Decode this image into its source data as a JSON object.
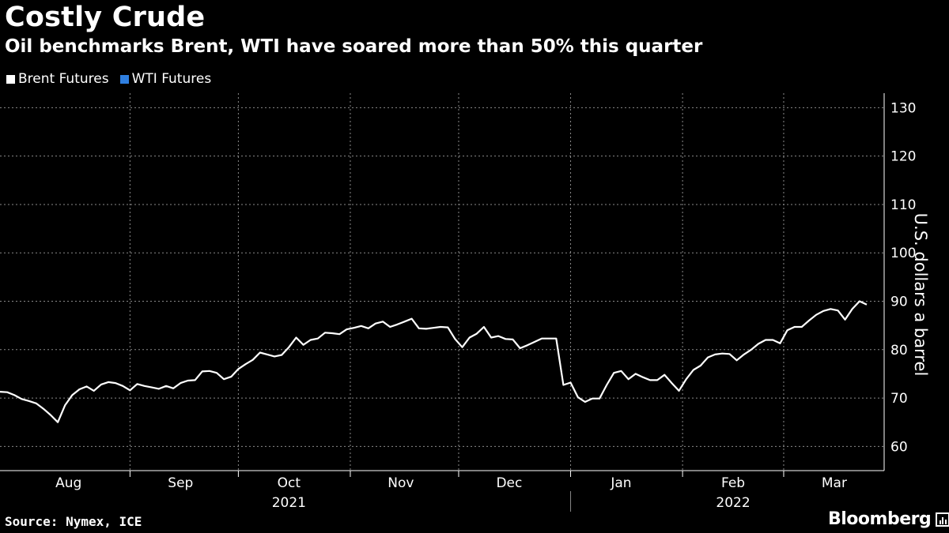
{
  "header": {
    "title": "Costly Crude",
    "subtitle": "Oil benchmarks Brent, WTI have soared more than 50% this quarter"
  },
  "legend": {
    "brent_label": "Brent Futures",
    "wti_label": "WTI Futures"
  },
  "footer": {
    "source": "Source: Nymex, ICE",
    "brand": "Bloomberg"
  },
  "colors": {
    "background": "#000000",
    "brent": "#ffffff",
    "wti": "#2f7fe0",
    "grid": "#8a8a8a"
  },
  "chart_data": {
    "type": "line",
    "title": "Costly Crude",
    "subtitle": "Oil benchmarks Brent, WTI have soared more than 50% this quarter",
    "xlabel": "",
    "ylabel": "U.S. dollars a barrel",
    "ylim": [
      55,
      133
    ],
    "yticks": [
      60,
      70,
      80,
      90,
      100,
      110,
      120,
      130
    ],
    "x_range": [
      "2021-07-27",
      "2022-03-24"
    ],
    "month_ticks": [
      {
        "label": "Aug",
        "date": "2021-08-15"
      },
      {
        "label": "Sep",
        "date": "2021-09-15"
      },
      {
        "label": "Oct",
        "date": "2021-10-15"
      },
      {
        "label": "Nov",
        "date": "2021-11-15"
      },
      {
        "label": "Dec",
        "date": "2021-12-15"
      },
      {
        "label": "Jan",
        "date": "2022-01-15"
      },
      {
        "label": "Feb",
        "date": "2022-02-15"
      },
      {
        "label": "Mar",
        "date": "2022-03-15"
      }
    ],
    "month_boundaries": [
      "2021-09-01",
      "2021-10-01",
      "2021-11-01",
      "2021-12-01",
      "2022-01-01",
      "2022-02-01",
      "2022-03-01"
    ],
    "year_labels": [
      {
        "label": "2021",
        "date": "2021-10-15"
      },
      {
        "label": "2022",
        "date": "2022-02-15"
      }
    ],
    "year_boundary": "2022-01-01",
    "grid": true,
    "legend_position": "top-left",
    "series": [
      {
        "name": "Brent Futures",
        "color": "#ffffff",
        "points": [
          [
            "2021-07-27",
            71.3
          ],
          [
            "2021-07-29",
            71.2
          ],
          [
            "2021-07-31",
            70.6
          ],
          [
            "2021-08-02",
            69.8
          ],
          [
            "2021-08-04",
            69.4
          ],
          [
            "2021-08-06",
            68.9
          ],
          [
            "2021-08-08",
            67.8
          ],
          [
            "2021-08-10",
            66.5
          ],
          [
            "2021-08-12",
            65.0
          ],
          [
            "2021-08-14",
            68.5
          ],
          [
            "2021-08-16",
            70.6
          ],
          [
            "2021-08-18",
            71.8
          ],
          [
            "2021-08-20",
            72.4
          ],
          [
            "2021-08-22",
            71.5
          ],
          [
            "2021-08-24",
            72.8
          ],
          [
            "2021-08-26",
            73.3
          ],
          [
            "2021-08-28",
            73.1
          ],
          [
            "2021-08-30",
            72.5
          ],
          [
            "2021-09-01",
            71.6
          ],
          [
            "2021-09-03",
            72.9
          ],
          [
            "2021-09-05",
            72.5
          ],
          [
            "2021-09-07",
            72.2
          ],
          [
            "2021-09-09",
            71.9
          ],
          [
            "2021-09-11",
            72.5
          ],
          [
            "2021-09-13",
            72.0
          ],
          [
            "2021-09-15",
            73.1
          ],
          [
            "2021-09-17",
            73.6
          ],
          [
            "2021-09-19",
            73.7
          ],
          [
            "2021-09-21",
            75.5
          ],
          [
            "2021-09-23",
            75.6
          ],
          [
            "2021-09-25",
            75.2
          ],
          [
            "2021-09-27",
            73.9
          ],
          [
            "2021-09-29",
            74.4
          ],
          [
            "2021-10-01",
            76.0
          ],
          [
            "2021-10-03",
            77.0
          ],
          [
            "2021-10-05",
            77.9
          ],
          [
            "2021-10-07",
            79.4
          ],
          [
            "2021-10-09",
            79.0
          ],
          [
            "2021-10-11",
            78.6
          ],
          [
            "2021-10-13",
            78.9
          ],
          [
            "2021-10-15",
            80.5
          ],
          [
            "2021-10-17",
            82.5
          ],
          [
            "2021-10-19",
            81.0
          ],
          [
            "2021-10-21",
            82.0
          ],
          [
            "2021-10-23",
            82.3
          ],
          [
            "2021-10-25",
            83.5
          ],
          [
            "2021-10-27",
            83.4
          ],
          [
            "2021-10-29",
            83.2
          ],
          [
            "2021-10-31",
            84.2
          ],
          [
            "2021-11-02",
            84.5
          ],
          [
            "2021-11-04",
            84.9
          ],
          [
            "2021-11-06",
            84.4
          ],
          [
            "2021-11-08",
            85.4
          ],
          [
            "2021-11-10",
            85.8
          ],
          [
            "2021-11-12",
            84.7
          ],
          [
            "2021-11-14",
            85.2
          ],
          [
            "2021-11-16",
            85.8
          ],
          [
            "2021-11-18",
            86.4
          ],
          [
            "2021-11-20",
            84.4
          ],
          [
            "2021-11-22",
            84.3
          ],
          [
            "2021-11-24",
            84.5
          ],
          [
            "2021-11-26",
            84.7
          ],
          [
            "2021-11-28",
            84.6
          ],
          [
            "2021-11-30",
            82.2
          ],
          [
            "2021-12-02",
            80.5
          ],
          [
            "2021-12-04",
            82.5
          ],
          [
            "2021-12-06",
            83.3
          ],
          [
            "2021-12-08",
            84.7
          ],
          [
            "2021-12-10",
            82.5
          ],
          [
            "2021-12-12",
            82.8
          ],
          [
            "2021-12-14",
            82.2
          ],
          [
            "2021-12-16",
            82.1
          ],
          [
            "2021-12-18",
            80.3
          ],
          [
            "2021-12-20",
            80.9
          ],
          [
            "2021-12-22",
            81.6
          ],
          [
            "2021-12-24",
            82.3
          ],
          [
            "2021-12-26",
            82.3
          ],
          [
            "2021-12-28",
            82.3
          ],
          [
            "2021-12-30",
            72.7
          ],
          [
            "2022-01-01",
            73.2
          ],
          [
            "2022-01-03",
            70.2
          ],
          [
            "2022-01-05",
            69.2
          ],
          [
            "2022-01-07",
            69.9
          ],
          [
            "2022-01-09",
            69.9
          ],
          [
            "2022-01-11",
            72.7
          ],
          [
            "2022-01-13",
            75.2
          ],
          [
            "2022-01-15",
            75.6
          ],
          [
            "2022-01-17",
            73.9
          ],
          [
            "2022-01-19",
            75.0
          ],
          [
            "2022-01-21",
            74.3
          ],
          [
            "2022-01-23",
            73.7
          ],
          [
            "2022-01-25",
            73.7
          ],
          [
            "2022-01-27",
            74.8
          ],
          [
            "2022-01-29",
            73.1
          ],
          [
            "2022-01-31",
            71.5
          ],
          [
            "2022-02-02",
            73.9
          ],
          [
            "2022-02-04",
            75.8
          ],
          [
            "2022-02-06",
            76.7
          ],
          [
            "2022-02-08",
            78.4
          ],
          [
            "2022-02-10",
            79.0
          ],
          [
            "2022-02-12",
            79.2
          ],
          [
            "2022-02-14",
            79.1
          ],
          [
            "2022-02-16",
            77.8
          ],
          [
            "2022-02-18",
            79.0
          ],
          [
            "2022-02-20",
            80.0
          ],
          [
            "2022-02-22",
            81.2
          ],
          [
            "2022-02-24",
            82.0
          ],
          [
            "2022-02-26",
            82.0
          ],
          [
            "2022-02-28",
            81.3
          ],
          [
            "2022-03-02",
            84.0
          ],
          [
            "2022-03-04",
            84.7
          ],
          [
            "2022-03-06",
            84.7
          ],
          [
            "2022-03-08",
            86.0
          ],
          [
            "2022-03-10",
            87.2
          ],
          [
            "2022-03-12",
            88.0
          ],
          [
            "2022-03-14",
            88.4
          ],
          [
            "2022-03-16",
            88.1
          ],
          [
            "2022-03-18",
            86.2
          ],
          [
            "2022-03-20",
            88.4
          ],
          [
            "2022-03-22",
            90.0
          ],
          [
            "2022-03-24",
            89.3
          ]
        ]
      }
    ]
  }
}
